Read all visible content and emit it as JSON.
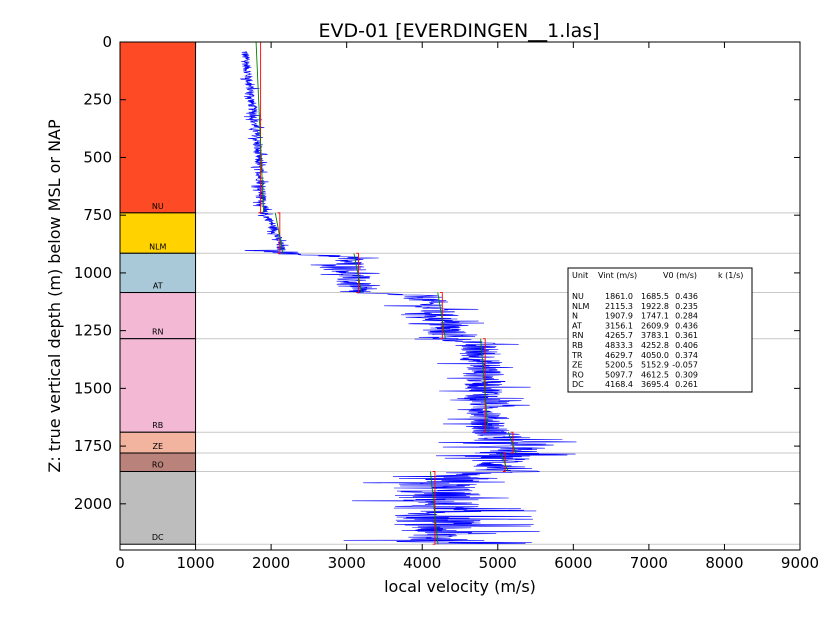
{
  "chart_data": {
    "type": "line",
    "title": "EVD-01 [EVERDINGEN__1.las]",
    "xlabel": "local velocity (m/s)",
    "ylabel": "Z: true vertical depth (m) below MSL or NAP",
    "xlim": [
      0,
      9000
    ],
    "ylim": [
      2200,
      0
    ],
    "x_ticks": [
      "0",
      "1000",
      "2000",
      "3000",
      "4000",
      "5000",
      "6000",
      "7000",
      "8000",
      "9000"
    ],
    "y_ticks": [
      "0",
      "250",
      "500",
      "750",
      "1000",
      "1250",
      "1500",
      "1750",
      "2000"
    ],
    "x_tick_values": [
      0,
      1000,
      2000,
      3000,
      4000,
      5000,
      6000,
      7000,
      8000,
      9000
    ],
    "y_tick_values": [
      0,
      250,
      500,
      750,
      1000,
      1250,
      1500,
      1750,
      2000
    ],
    "units": [
      {
        "label": "NU",
        "top": 0,
        "base": 740,
        "color": "#FF4B25",
        "vint": 1861.0,
        "v0": 1685.5,
        "k": 0.436
      },
      {
        "label": "NLM",
        "top": 740,
        "base": 915,
        "color": "#FFD200",
        "vint": 2115.3,
        "v0": 1922.8,
        "k": 0.235
      },
      {
        "label": "AT",
        "top": 915,
        "base": 1085,
        "color": "#A9C9D9",
        "vint": 3156.1,
        "v0": 2609.9,
        "k": 0.436
      },
      {
        "label": "RN",
        "top": 1085,
        "base": 1285,
        "color": "#F2B8D4",
        "vint": 4265.7,
        "v0": 3783.1,
        "k": 0.361
      },
      {
        "label": "RB",
        "top": 1285,
        "base": 1690,
        "color": "#F2B8D4",
        "vint": 4833.3,
        "v0": 4252.8,
        "k": 0.406
      },
      {
        "label": "ZE",
        "top": 1690,
        "base": 1780,
        "color": "#F2B49E",
        "vint": 5200.5,
        "v0": 5152.9,
        "k": -0.057
      },
      {
        "label": "RO",
        "top": 1780,
        "base": 1860,
        "color": "#B9827B",
        "vint": 5097.7,
        "v0": 4612.5,
        "k": 0.309
      },
      {
        "label": "DC",
        "top": 1860,
        "base": 2175,
        "color": "#BDBDBD",
        "vint": 4168.4,
        "v0": 3695.4,
        "k": 0.261
      }
    ],
    "velocity_trend": [
      [
        1650,
        40
      ],
      [
        1720,
        200
      ],
      [
        1800,
        400
      ],
      [
        1860,
        600
      ],
      [
        1900,
        740
      ],
      [
        2000,
        780
      ],
      [
        2100,
        860
      ],
      [
        2150,
        915
      ],
      [
        3000,
        930
      ],
      [
        3050,
        1000
      ],
      [
        3100,
        1085
      ],
      [
        4000,
        1100
      ],
      [
        4250,
        1200
      ],
      [
        4350,
        1285
      ],
      [
        4700,
        1300
      ],
      [
        4800,
        1400
      ],
      [
        4850,
        1550
      ],
      [
        4900,
        1690
      ],
      [
        5050,
        1700
      ],
      [
        5100,
        1760
      ],
      [
        5150,
        1780
      ],
      [
        5000,
        1790
      ],
      [
        5100,
        1860
      ],
      [
        4180,
        1870
      ],
      [
        4200,
        2000
      ],
      [
        4250,
        2175
      ]
    ]
  },
  "table": {
    "header": [
      "Unit",
      "Vint (m/s)",
      "V0 (m/s)",
      "k (1/s)"
    ],
    "rows": [
      {
        "unit": "NU",
        "vint": "1861.0",
        "v0": "1685.5",
        "k": "0.436"
      },
      {
        "unit": "NLM",
        "vint": "2115.3",
        "v0": "1922.8",
        "k": "0.235"
      },
      {
        "unit": "N",
        "vint": "1907.9",
        "v0": "1747.1",
        "k": "0.284"
      },
      {
        "unit": "AT",
        "vint": "3156.1",
        "v0": "2609.9",
        "k": "0.436"
      },
      {
        "unit": "RN",
        "vint": "4265.7",
        "v0": "3783.1",
        "k": "0.361"
      },
      {
        "unit": "RB",
        "vint": "4833.3",
        "v0": "4252.8",
        "k": "0.406"
      },
      {
        "unit": "TR",
        "vint": "4629.7",
        "v0": "4050.0",
        "k": "0.374"
      },
      {
        "unit": "ZE",
        "vint": "5200.5",
        "v0": "5152.9",
        "k": "-0.057"
      },
      {
        "unit": "RO",
        "vint": "5097.7",
        "v0": "4612.5",
        "k": "0.309"
      },
      {
        "unit": "DC",
        "vint": "4168.4",
        "v0": "3695.4",
        "k": "0.261"
      }
    ]
  }
}
